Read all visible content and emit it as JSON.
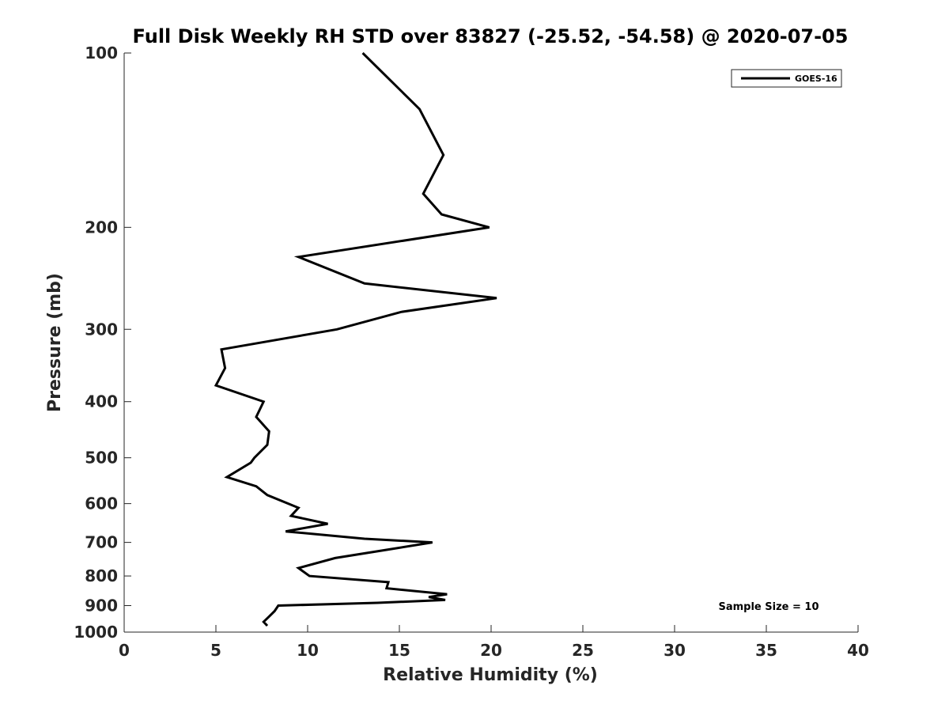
{
  "chart_data": {
    "type": "line",
    "title": "Full Disk Weekly RH STD over 83827 (-25.52, -54.58) @ 2020-07-05",
    "xlabel": "Relative Humidity (%)",
    "ylabel": "Pressure (mb)",
    "xlim": [
      0,
      40
    ],
    "ylim": [
      100,
      1000
    ],
    "y_scale": "log",
    "y_reversed": true,
    "x_ticks": [
      0,
      5,
      10,
      15,
      20,
      25,
      30,
      35,
      40
    ],
    "x_tick_labels": [
      "0",
      "5",
      "10",
      "15",
      "20",
      "25",
      "30",
      "35",
      "40"
    ],
    "y_ticks": [
      100,
      200,
      300,
      400,
      500,
      600,
      700,
      800,
      900,
      1000
    ],
    "y_tick_labels": [
      "100",
      "200",
      "300",
      "400",
      "500",
      "600",
      "700",
      "800",
      "900",
      "1000"
    ],
    "grid": false,
    "legend_position": "top-right",
    "annotation": "Sample Size = 10",
    "colors": {
      "line": "#000000",
      "axis": "#262626",
      "background": "#ffffff"
    },
    "series": [
      {
        "name": "GOES-16",
        "x": [
          13.0,
          16.1,
          17.4,
          16.3,
          17.3,
          19.9,
          9.5,
          13.1,
          20.3,
          15.1,
          11.6,
          5.3,
          5.5,
          5.0,
          7.6,
          7.2,
          7.9,
          7.8,
          7.1,
          6.9,
          5.6,
          7.2,
          7.8,
          9.5,
          9.1,
          11.1,
          8.8,
          13.1,
          16.8,
          14.4,
          11.5,
          9.5,
          10.1,
          14.4,
          14.3,
          17.6,
          16.6,
          17.5,
          13.8,
          8.4,
          8.2,
          7.9,
          7.6,
          7.8
        ],
        "pressure": [
          100,
          125,
          150,
          175,
          190,
          200,
          225,
          250,
          265,
          280,
          300,
          325,
          350,
          375,
          400,
          425,
          450,
          475,
          500,
          510,
          540,
          560,
          580,
          610,
          630,
          650,
          670,
          690,
          700,
          720,
          745,
          775,
          800,
          820,
          840,
          860,
          870,
          880,
          890,
          900,
          920,
          940,
          960,
          975
        ]
      }
    ]
  }
}
